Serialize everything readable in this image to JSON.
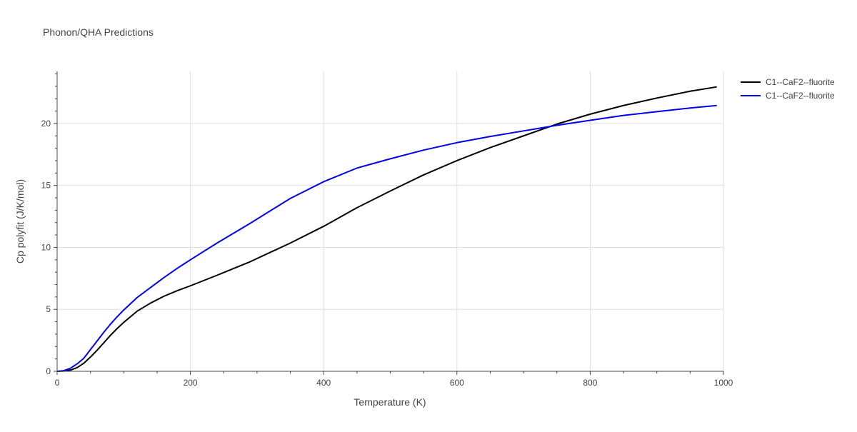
{
  "chart_data": {
    "type": "line",
    "title": "Phonon/QHA Predictions",
    "xlabel": "Temperature (K)",
    "ylabel": "Cp polyfit (J/K/mol)",
    "xlim": [
      0,
      1000
    ],
    "ylim": [
      0,
      24.2
    ],
    "x_ticks": [
      0,
      200,
      400,
      600,
      800,
      1000
    ],
    "x_tick_labels": [
      "0",
      "200",
      "400",
      "600",
      "800",
      "1000"
    ],
    "y_ticks": [
      0,
      5,
      10,
      15,
      20
    ],
    "y_tick_labels": [
      "0",
      "5",
      "10",
      "15",
      "20"
    ],
    "grid": true,
    "legend_position": "top-right, outside plot",
    "series": [
      {
        "name": "C1--CaF2--fluorite",
        "color": "#000000",
        "x": [
          0,
          10,
          20,
          30,
          40,
          50,
          60,
          70,
          80,
          90,
          100,
          120,
          140,
          160,
          180,
          200,
          240,
          290,
          350,
          400,
          450,
          500,
          550,
          600,
          650,
          700,
          750,
          800,
          850,
          900,
          950,
          990
        ],
        "y": [
          0,
          0.02,
          0.1,
          0.3,
          0.65,
          1.15,
          1.7,
          2.3,
          2.9,
          3.45,
          3.95,
          4.85,
          5.5,
          6.05,
          6.5,
          6.9,
          7.75,
          8.85,
          10.35,
          11.7,
          13.2,
          14.55,
          15.85,
          17.0,
          18.05,
          19.0,
          19.95,
          20.75,
          21.45,
          22.05,
          22.6,
          22.95
        ]
      },
      {
        "name": "C1--CaF2--fluorite",
        "color": "#0000ee",
        "x": [
          0,
          10,
          20,
          30,
          40,
          50,
          60,
          70,
          80,
          90,
          100,
          120,
          140,
          160,
          180,
          200,
          240,
          290,
          350,
          400,
          450,
          500,
          550,
          600,
          650,
          700,
          750,
          800,
          850,
          900,
          950,
          990
        ],
        "y": [
          0,
          0.05,
          0.25,
          0.6,
          1.05,
          1.75,
          2.45,
          3.15,
          3.8,
          4.4,
          4.95,
          5.95,
          6.75,
          7.55,
          8.3,
          9.0,
          10.35,
          11.95,
          13.95,
          15.3,
          16.4,
          17.15,
          17.85,
          18.45,
          18.95,
          19.4,
          19.85,
          20.25,
          20.65,
          20.95,
          21.25,
          21.45
        ]
      }
    ]
  }
}
